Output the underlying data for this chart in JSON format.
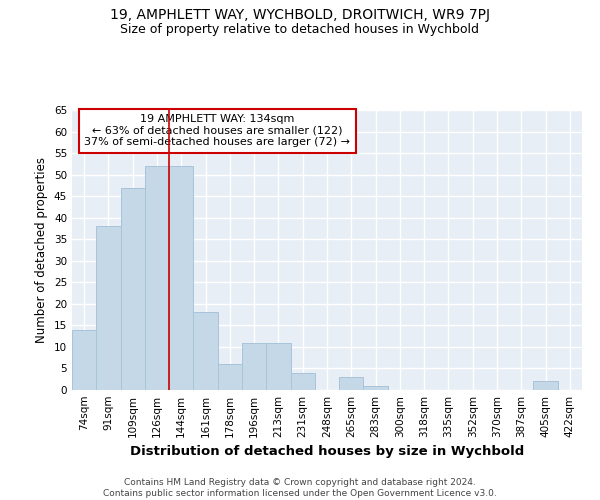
{
  "title": "19, AMPHLETT WAY, WYCHBOLD, DROITWICH, WR9 7PJ",
  "subtitle": "Size of property relative to detached houses in Wychbold",
  "xlabel": "Distribution of detached houses by size in Wychbold",
  "ylabel": "Number of detached properties",
  "footnote": "Contains HM Land Registry data © Crown copyright and database right 2024.\nContains public sector information licensed under the Open Government Licence v3.0.",
  "categories": [
    "74sqm",
    "91sqm",
    "109sqm",
    "126sqm",
    "144sqm",
    "161sqm",
    "178sqm",
    "196sqm",
    "213sqm",
    "231sqm",
    "248sqm",
    "265sqm",
    "283sqm",
    "300sqm",
    "318sqm",
    "335sqm",
    "352sqm",
    "370sqm",
    "387sqm",
    "405sqm",
    "422sqm"
  ],
  "values": [
    14,
    38,
    47,
    52,
    52,
    18,
    6,
    11,
    11,
    4,
    0,
    3,
    1,
    0,
    0,
    0,
    0,
    0,
    0,
    2,
    0
  ],
  "bar_color": "#c5d8e8",
  "bar_edge_color": "#a8c4d8",
  "vline_x": 3.5,
  "vline_color": "#cc0000",
  "annotation_text": "19 AMPHLETT WAY: 134sqm\n← 63% of detached houses are smaller (122)\n37% of semi-detached houses are larger (72) →",
  "annotation_box_color": "#ffffff",
  "annotation_box_edge_color": "#cc0000",
  "ylim": [
    0,
    65
  ],
  "yticks": [
    0,
    5,
    10,
    15,
    20,
    25,
    30,
    35,
    40,
    45,
    50,
    55,
    60,
    65
  ],
  "fig_bg_color": "#ffffff",
  "plot_bg_color": "#e8eef5",
  "grid_color": "#ffffff",
  "title_fontsize": 10,
  "subtitle_fontsize": 9,
  "xlabel_fontsize": 9.5,
  "ylabel_fontsize": 8.5,
  "tick_fontsize": 7.5,
  "annotation_fontsize": 8,
  "footnote_fontsize": 6.5
}
